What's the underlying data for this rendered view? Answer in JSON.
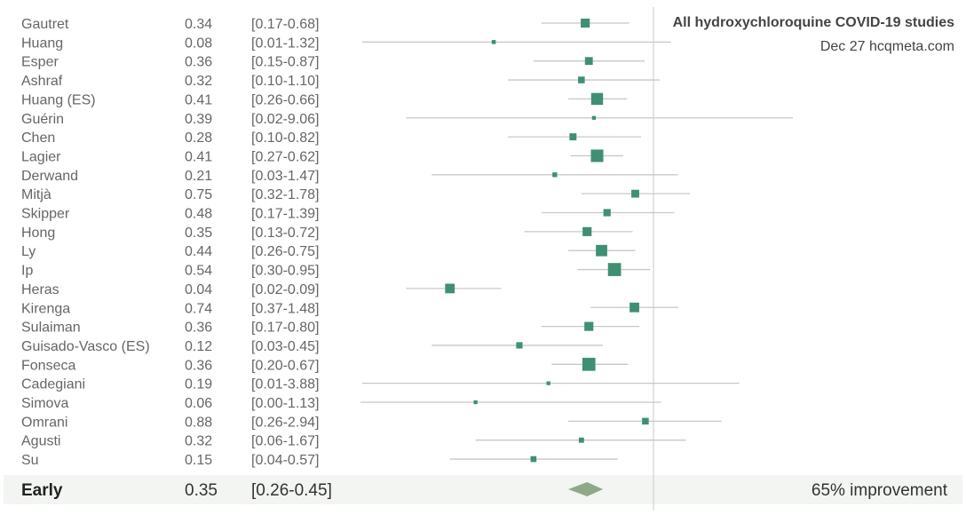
{
  "chart_data": {
    "type": "forest",
    "title": "All hydroxychloroquine COVID-19 studies",
    "subtitle": "Dec 27 hcqmeta.com",
    "x_scale": "log",
    "xlim": [
      0.01,
      10
    ],
    "reference_value": 1,
    "grid": false,
    "studies": [
      {
        "name": "Gautret",
        "value": "0.34",
        "ci": "[0.17-0.68]",
        "estimate": 0.34,
        "lower": 0.17,
        "upper": 0.68,
        "weight": 0.55
      },
      {
        "name": "Huang",
        "value": "0.08",
        "ci": "[0.01-1.32]",
        "estimate": 0.08,
        "lower": 0.01,
        "upper": 1.32,
        "weight": 0.12
      },
      {
        "name": "Esper",
        "value": "0.36",
        "ci": "[0.15-0.87]",
        "estimate": 0.36,
        "lower": 0.15,
        "upper": 0.87,
        "weight": 0.45
      },
      {
        "name": "Ashraf",
        "value": "0.32",
        "ci": "[0.10-1.10]",
        "estimate": 0.32,
        "lower": 0.1,
        "upper": 1.1,
        "weight": 0.35
      },
      {
        "name": "Huang (ES)",
        "value": "0.41",
        "ci": "[0.26-0.66]",
        "estimate": 0.41,
        "lower": 0.26,
        "upper": 0.66,
        "weight": 0.8
      },
      {
        "name": "Guérin",
        "value": "0.39",
        "ci": "[0.02-9.06]",
        "estimate": 0.39,
        "lower": 0.02,
        "upper": 9.06,
        "weight": 0.1
      },
      {
        "name": "Chen",
        "value": "0.28",
        "ci": "[0.10-0.82]",
        "estimate": 0.28,
        "lower": 0.1,
        "upper": 0.82,
        "weight": 0.38
      },
      {
        "name": "Lagier",
        "value": "0.41",
        "ci": "[0.27-0.62]",
        "estimate": 0.41,
        "lower": 0.27,
        "upper": 0.62,
        "weight": 0.85
      },
      {
        "name": "Derwand",
        "value": "0.21",
        "ci": "[0.03-1.47]",
        "estimate": 0.21,
        "lower": 0.03,
        "upper": 1.47,
        "weight": 0.18
      },
      {
        "name": "Mitjà",
        "value": "0.75",
        "ci": "[0.32-1.78]",
        "estimate": 0.75,
        "lower": 0.32,
        "upper": 1.78,
        "weight": 0.45
      },
      {
        "name": "Skipper",
        "value": "0.48",
        "ci": "[0.17-1.39]",
        "estimate": 0.48,
        "lower": 0.17,
        "upper": 1.39,
        "weight": 0.4
      },
      {
        "name": "Hong",
        "value": "0.35",
        "ci": "[0.13-0.72]",
        "estimate": 0.35,
        "lower": 0.13,
        "upper": 0.72,
        "weight": 0.55
      },
      {
        "name": "Ly",
        "value": "0.44",
        "ci": "[0.26-0.75]",
        "estimate": 0.44,
        "lower": 0.26,
        "upper": 0.75,
        "weight": 0.75
      },
      {
        "name": "Ip",
        "value": "0.54",
        "ci": "[0.30-0.95]",
        "estimate": 0.54,
        "lower": 0.3,
        "upper": 0.95,
        "weight": 0.9
      },
      {
        "name": "Heras",
        "value": "0.04",
        "ci": "[0.02-0.09]",
        "estimate": 0.04,
        "lower": 0.02,
        "upper": 0.09,
        "weight": 0.6
      },
      {
        "name": "Kirenga",
        "value": "0.74",
        "ci": "[0.37-1.48]",
        "estimate": 0.74,
        "lower": 0.37,
        "upper": 1.48,
        "weight": 0.6
      },
      {
        "name": "Sulaiman",
        "value": "0.36",
        "ci": "[0.17-0.80]",
        "estimate": 0.36,
        "lower": 0.17,
        "upper": 0.8,
        "weight": 0.55
      },
      {
        "name": "Guisado-Vasco (ES)",
        "value": "0.12",
        "ci": "[0.03-0.45]",
        "estimate": 0.12,
        "lower": 0.03,
        "upper": 0.45,
        "weight": 0.32
      },
      {
        "name": "Fonseca",
        "value": "0.36",
        "ci": "[0.20-0.67]",
        "estimate": 0.36,
        "lower": 0.2,
        "upper": 0.67,
        "weight": 0.9
      },
      {
        "name": "Cadegiani",
        "value": "0.19",
        "ci": "[0.01-3.88]",
        "estimate": 0.19,
        "lower": 0.01,
        "upper": 3.88,
        "weight": 0.1
      },
      {
        "name": "Simova",
        "value": "0.06",
        "ci": "[0.00-1.13]",
        "estimate": 0.06,
        "lower": 0.0,
        "upper": 1.13,
        "weight": 0.1
      },
      {
        "name": "Omrani",
        "value": "0.88",
        "ci": "[0.26-2.94]",
        "estimate": 0.88,
        "lower": 0.26,
        "upper": 2.94,
        "weight": 0.35
      },
      {
        "name": "Agusti",
        "value": "0.32",
        "ci": "[0.06-1.67]",
        "estimate": 0.32,
        "lower": 0.06,
        "upper": 1.67,
        "weight": 0.22
      },
      {
        "name": "Su",
        "value": "0.15",
        "ci": "[0.04-0.57]",
        "estimate": 0.15,
        "lower": 0.04,
        "upper": 0.57,
        "weight": 0.28
      }
    ],
    "summary": {
      "name": "Early",
      "value": "0.35",
      "ci": "[0.26-0.45]",
      "estimate": 0.35,
      "lower": 0.26,
      "upper": 0.45,
      "improvement": "65% improvement"
    },
    "colors": {
      "marker": "#3f9072",
      "diamond": "#8fa88a",
      "ci_line": "#c8c8c8",
      "reference_line": "#d2d2d2",
      "summary_bg": "#f2f5f1"
    }
  }
}
